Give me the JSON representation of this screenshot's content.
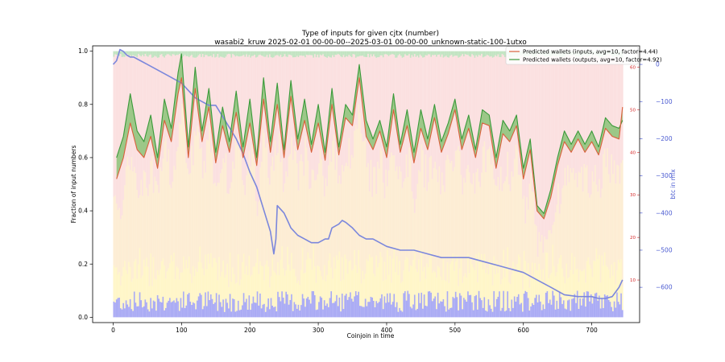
{
  "chart_data": {
    "type": "line",
    "title_line1": "Type of inputs for given cjtx (number)",
    "title_line2": "wasabi2_kruw 2025-02-01 00-00-00--2025-03-01 00-00-00_unknown-static-100-1utxo",
    "xlabel": "Coinjoin in time",
    "ylabel_left": "Fraction of input numbers",
    "ylabel_right": "btc in mix",
    "xlim": [
      -30,
      770
    ],
    "ylim_left": [
      -0.02,
      1.02
    ],
    "ylim_right": [
      -695,
      50
    ],
    "ylim_inner_right": [
      0,
      65
    ],
    "x_ticks": [
      0,
      100,
      200,
      300,
      400,
      500,
      600,
      700
    ],
    "y_ticks_left": [
      0.0,
      0.2,
      0.4,
      0.6,
      0.8,
      1.0
    ],
    "y_ticks_right": [
      0,
      -100,
      -200,
      -300,
      -400,
      -500,
      -600
    ],
    "y_ticks_inner_right": [
      10,
      20,
      30,
      40,
      50,
      60
    ],
    "colors": {
      "inputs_line": "#d9603b",
      "outputs_line": "#3a9a3a",
      "outputs_fill": "#7cbf6a",
      "btc_line": "#7b87dc",
      "band_red": "#f7c6c6",
      "band_orange": "#fbd7a0",
      "band_yellow": "#fff2b0",
      "band_blue": "#8e8ff0",
      "band_green": "#a8d8a8",
      "right_axis_blue": "#4b5bd1",
      "inner_axis_red": "#d62728"
    },
    "legend": {
      "placement": "top-right",
      "entries": [
        {
          "label": "Predicted wallets (inputs, avg=10, factor=4.44)",
          "color": "#d9603b"
        },
        {
          "label": "Predicted wallets (outputs, avg=10, factor=4.92)",
          "color": "#3a9a3a"
        }
      ]
    },
    "series": [
      {
        "name": "Predicted wallets (inputs, avg=10, factor=4.44)",
        "x": [
          5,
          15,
          25,
          35,
          45,
          55,
          65,
          75,
          85,
          95,
          100,
          110,
          120,
          130,
          140,
          150,
          160,
          170,
          180,
          190,
          200,
          210,
          220,
          230,
          240,
          250,
          260,
          270,
          280,
          290,
          300,
          310,
          320,
          330,
          340,
          350,
          360,
          370,
          380,
          390,
          400,
          410,
          420,
          430,
          440,
          450,
          460,
          470,
          480,
          490,
          500,
          510,
          520,
          530,
          540,
          550,
          560,
          570,
          580,
          590,
          600,
          610,
          620,
          630,
          640,
          650,
          660,
          670,
          680,
          690,
          700,
          710,
          720,
          730,
          740,
          745
        ],
        "values": [
          0.52,
          0.6,
          0.73,
          0.63,
          0.6,
          0.68,
          0.56,
          0.74,
          0.66,
          0.84,
          0.9,
          0.6,
          0.86,
          0.66,
          0.79,
          0.58,
          0.72,
          0.62,
          0.77,
          0.6,
          0.73,
          0.57,
          0.82,
          0.62,
          0.8,
          0.6,
          0.83,
          0.63,
          0.74,
          0.62,
          0.73,
          0.59,
          0.8,
          0.61,
          0.75,
          0.72,
          0.9,
          0.68,
          0.63,
          0.7,
          0.6,
          0.78,
          0.62,
          0.72,
          0.58,
          0.71,
          0.63,
          0.75,
          0.62,
          0.69,
          0.78,
          0.63,
          0.71,
          0.6,
          0.73,
          0.72,
          0.56,
          0.69,
          0.66,
          0.72,
          0.52,
          0.63,
          0.4,
          0.37,
          0.45,
          0.57,
          0.66,
          0.62,
          0.67,
          0.62,
          0.66,
          0.61,
          0.71,
          0.68,
          0.67,
          0.79
        ]
      },
      {
        "name": "Predicted wallets (outputs, avg=10, factor=4.92)",
        "x": [
          5,
          15,
          25,
          35,
          45,
          55,
          65,
          75,
          85,
          95,
          100,
          110,
          120,
          130,
          140,
          150,
          160,
          170,
          180,
          190,
          200,
          210,
          220,
          230,
          240,
          250,
          260,
          270,
          280,
          290,
          300,
          310,
          320,
          330,
          340,
          350,
          360,
          370,
          380,
          390,
          400,
          410,
          420,
          430,
          440,
          450,
          460,
          470,
          480,
          490,
          500,
          510,
          520,
          530,
          540,
          550,
          560,
          570,
          580,
          590,
          600,
          610,
          620,
          630,
          640,
          650,
          660,
          670,
          680,
          690,
          700,
          710,
          720,
          730,
          740,
          745
        ],
        "values": [
          0.6,
          0.68,
          0.84,
          0.7,
          0.66,
          0.76,
          0.6,
          0.82,
          0.71,
          0.92,
          0.99,
          0.64,
          0.94,
          0.7,
          0.86,
          0.62,
          0.79,
          0.66,
          0.85,
          0.64,
          0.82,
          0.6,
          0.9,
          0.66,
          0.88,
          0.63,
          0.89,
          0.67,
          0.82,
          0.65,
          0.8,
          0.62,
          0.86,
          0.64,
          0.8,
          0.76,
          0.95,
          0.74,
          0.67,
          0.74,
          0.64,
          0.84,
          0.65,
          0.78,
          0.62,
          0.78,
          0.67,
          0.8,
          0.66,
          0.73,
          0.82,
          0.67,
          0.76,
          0.63,
          0.78,
          0.76,
          0.6,
          0.74,
          0.7,
          0.76,
          0.56,
          0.67,
          0.42,
          0.39,
          0.48,
          0.6,
          0.7,
          0.65,
          0.7,
          0.65,
          0.7,
          0.64,
          0.75,
          0.72,
          0.71,
          0.74
        ]
      },
      {
        "name": "btc in mix",
        "axis": "right",
        "x": [
          0,
          5,
          10,
          15,
          20,
          25,
          30,
          40,
          50,
          60,
          70,
          80,
          90,
          100,
          110,
          120,
          130,
          140,
          150,
          160,
          170,
          180,
          190,
          200,
          210,
          220,
          230,
          235,
          238,
          240,
          245,
          250,
          255,
          260,
          270,
          280,
          290,
          300,
          310,
          315,
          320,
          330,
          335,
          340,
          350,
          360,
          370,
          380,
          400,
          420,
          440,
          460,
          480,
          500,
          520,
          540,
          560,
          580,
          600,
          620,
          640,
          660,
          680,
          700,
          710,
          720,
          730,
          740,
          745
        ],
        "values": [
          0,
          10,
          40,
          35,
          25,
          20,
          20,
          10,
          0,
          -10,
          -20,
          -30,
          -40,
          -50,
          -70,
          -90,
          -100,
          -110,
          -110,
          -140,
          -170,
          -200,
          -240,
          -290,
          -330,
          -390,
          -450,
          -510,
          -470,
          -380,
          -390,
          -400,
          -420,
          -440,
          -460,
          -470,
          -480,
          -480,
          -470,
          -470,
          -440,
          -430,
          -420,
          -425,
          -440,
          -460,
          -470,
          -470,
          -490,
          -500,
          -500,
          -510,
          -520,
          -520,
          -520,
          -530,
          -540,
          -550,
          -560,
          -580,
          -600,
          -620,
          -625,
          -625,
          -630,
          -630,
          -625,
          -600,
          -580
        ]
      }
    ]
  }
}
